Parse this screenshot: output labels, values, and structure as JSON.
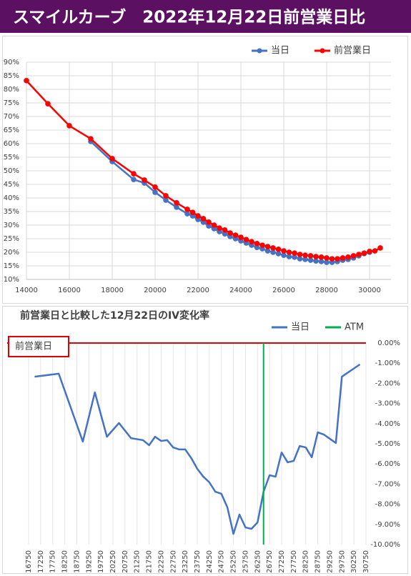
{
  "header": {
    "title": "スマイルカーブ　2022年12月22日前営業日比"
  },
  "chart_data": [
    {
      "type": "line",
      "x": [
        14000,
        15000,
        16000,
        17000,
        18000,
        19000,
        19500,
        20000,
        20500,
        21000,
        21500,
        21750,
        22000,
        22250,
        22500,
        22750,
        23000,
        23250,
        23500,
        23750,
        24000,
        24250,
        24500,
        24750,
        25000,
        25250,
        25500,
        25750,
        26000,
        26250,
        26500,
        26750,
        27000,
        27250,
        27500,
        27750,
        28000,
        28250,
        28500,
        28750,
        29000,
        29250,
        29500,
        29750,
        30000,
        30250,
        30500
      ],
      "series": [
        {
          "name": "当日",
          "color": "#4472c4",
          "values": [
            null,
            null,
            null,
            60.8,
            53.4,
            46.8,
            45.5,
            42.1,
            39.2,
            36.6,
            34.2,
            33.4,
            32.1,
            31.1,
            29.7,
            28.7,
            27.6,
            26.8,
            25.8,
            25.0,
            24.2,
            23.4,
            22.6,
            21.8,
            21.3,
            20.5,
            20.0,
            19.5,
            18.9,
            18.4,
            18.2,
            17.6,
            17.4,
            17.1,
            16.8,
            16.6,
            16.3,
            16.3,
            16.6,
            17.1,
            17.4,
            17.9,
            18.7,
            19.5,
            20.0,
            null,
            null
          ]
        },
        {
          "name": "前営業日",
          "color": "#ff0000",
          "values": [
            83.2,
            74.7,
            66.6,
            61.8,
            54.5,
            48.9,
            46.6,
            44.0,
            40.8,
            38.2,
            35.8,
            34.7,
            33.4,
            32.4,
            31.1,
            30.0,
            28.9,
            28.2,
            27.1,
            26.3,
            25.5,
            24.7,
            23.9,
            23.2,
            22.6,
            22.1,
            21.6,
            21.1,
            20.5,
            20.0,
            19.7,
            19.2,
            18.9,
            18.7,
            18.4,
            18.2,
            17.9,
            17.6,
            17.6,
            17.9,
            18.2,
            18.7,
            19.2,
            19.7,
            20.3,
            20.5,
            21.6
          ]
        }
      ],
      "xlim": [
        14000,
        31000
      ],
      "xticks": [
        14000,
        16000,
        18000,
        20000,
        22000,
        24000,
        26000,
        28000,
        30000
      ],
      "ylim": [
        10,
        90
      ],
      "yticks": [
        {
          "value": 10,
          "label": "10%"
        },
        {
          "value": 15,
          "label": "15%"
        },
        {
          "value": 20,
          "label": "20%"
        },
        {
          "value": 25,
          "label": "25%"
        },
        {
          "value": 30,
          "label": "30%"
        },
        {
          "value": 35,
          "label": "35%"
        },
        {
          "value": 40,
          "label": "40%"
        },
        {
          "value": 45,
          "label": "45%"
        },
        {
          "value": 50,
          "label": "50%"
        },
        {
          "value": 55,
          "label": "55%"
        },
        {
          "value": 60,
          "label": "60%"
        },
        {
          "value": 65,
          "label": "65%"
        },
        {
          "value": 70,
          "label": "70%"
        },
        {
          "value": 75,
          "label": "75%"
        },
        {
          "value": 80,
          "label": "80%"
        },
        {
          "value": 85,
          "label": "85%"
        },
        {
          "value": 90,
          "label": "90%"
        }
      ],
      "grid": "both",
      "markers": true,
      "y_axis": "left",
      "legend": "top-right"
    },
    {
      "type": "line",
      "title": "前営業日と比較した12月22日のIV変化率",
      "x": [
        17000,
        18000,
        19000,
        19500,
        20000,
        20500,
        21000,
        21500,
        21750,
        22000,
        22250,
        22500,
        22750,
        23000,
        23250,
        23500,
        23750,
        24000,
        24250,
        24500,
        24750,
        25000,
        25250,
        25500,
        25750,
        26000,
        26250,
        26500,
        26750,
        27000,
        27250,
        27500,
        27750,
        28000,
        28250,
        28500,
        28750,
        29000,
        29250,
        29500,
        29750,
        30500
      ],
      "series": [
        {
          "name": "当日",
          "color": "#4472c4",
          "values": [
            -1.67,
            -1.52,
            -4.89,
            -2.45,
            -4.65,
            -3.97,
            -4.72,
            -4.82,
            -5.07,
            -4.65,
            -4.86,
            -4.82,
            -5.18,
            -5.28,
            -5.28,
            -5.71,
            -6.24,
            -6.63,
            -6.91,
            -7.38,
            -7.48,
            -8.16,
            -9.47,
            -8.51,
            -9.15,
            -9.22,
            -8.9,
            -7.38,
            -6.56,
            -6.63,
            -5.43,
            -5.92,
            -5.85,
            -5.11,
            -5.18,
            -5.67,
            -4.43,
            -4.54,
            -4.75,
            -4.96,
            -1.67,
            -1.06
          ]
        }
      ],
      "atm": {
        "name": "ATM",
        "value": 26500,
        "color": "#00b050"
      },
      "reference_line": {
        "value": 0,
        "label": "前営業日",
        "color": "#e00000"
      },
      "xlim": [
        16750,
        30750
      ],
      "xticks": [
        16750,
        17250,
        17750,
        18250,
        18750,
        19250,
        19750,
        20250,
        20750,
        21250,
        21750,
        22250,
        22750,
        23250,
        23750,
        24250,
        24750,
        25250,
        25750,
        26250,
        26750,
        27250,
        27750,
        28250,
        28750,
        29250,
        29750,
        30250,
        30750
      ],
      "ylim": [
        -10,
        0
      ],
      "yticks": [
        {
          "value": 0,
          "label": "0.00%"
        },
        {
          "value": -1,
          "label": "-1.00%"
        },
        {
          "value": -2,
          "label": "-2.00%"
        },
        {
          "value": -3,
          "label": "-3.00%"
        },
        {
          "value": -4,
          "label": "-4.00%"
        },
        {
          "value": -5,
          "label": "-5.00%"
        },
        {
          "value": -6,
          "label": "-6.00%"
        },
        {
          "value": -7,
          "label": "-7.00%"
        },
        {
          "value": -8,
          "label": "-8.00%"
        },
        {
          "value": -9,
          "label": "-9.00%"
        },
        {
          "value": -10,
          "label": "-10.00%"
        }
      ],
      "grid": "x",
      "markers": false,
      "y_axis": "right",
      "legend": "top-right"
    }
  ]
}
